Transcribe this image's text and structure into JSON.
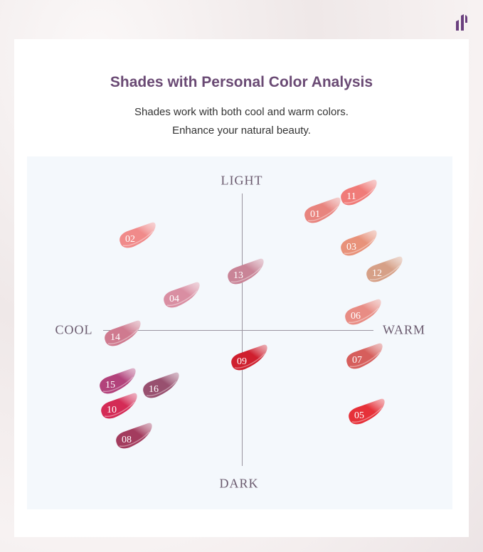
{
  "header": {
    "title": "Shades with Personal Color Analysis",
    "subtitle_lines": [
      "Shades work with both cool and warm colors.",
      "Enhance your natural beauty."
    ]
  },
  "logo": {
    "icon": "brand-logo-icon",
    "color": "#6a3f7e"
  },
  "axes": {
    "top": "LIGHT",
    "bottom": "DARK",
    "left": "COOL",
    "right": "WARM"
  },
  "shades": [
    {
      "id": "01",
      "color": "#e8847f"
    },
    {
      "id": "02",
      "color": "#f08a8a"
    },
    {
      "id": "03",
      "color": "#e8937a"
    },
    {
      "id": "04",
      "color": "#d98ea2"
    },
    {
      "id": "05",
      "color": "#e6323a"
    },
    {
      "id": "06",
      "color": "#e88c84"
    },
    {
      "id": "07",
      "color": "#d65f5c"
    },
    {
      "id": "08",
      "color": "#a43d5e"
    },
    {
      "id": "09",
      "color": "#cf1f2f"
    },
    {
      "id": "10",
      "color": "#d42c56"
    },
    {
      "id": "11",
      "color": "#f07b78"
    },
    {
      "id": "12",
      "color": "#d6a088"
    },
    {
      "id": "13",
      "color": "#c98597"
    },
    {
      "id": "14",
      "color": "#cf7a8f"
    },
    {
      "id": "15",
      "color": "#b2437c"
    },
    {
      "id": "16",
      "color": "#98506f"
    }
  ]
}
